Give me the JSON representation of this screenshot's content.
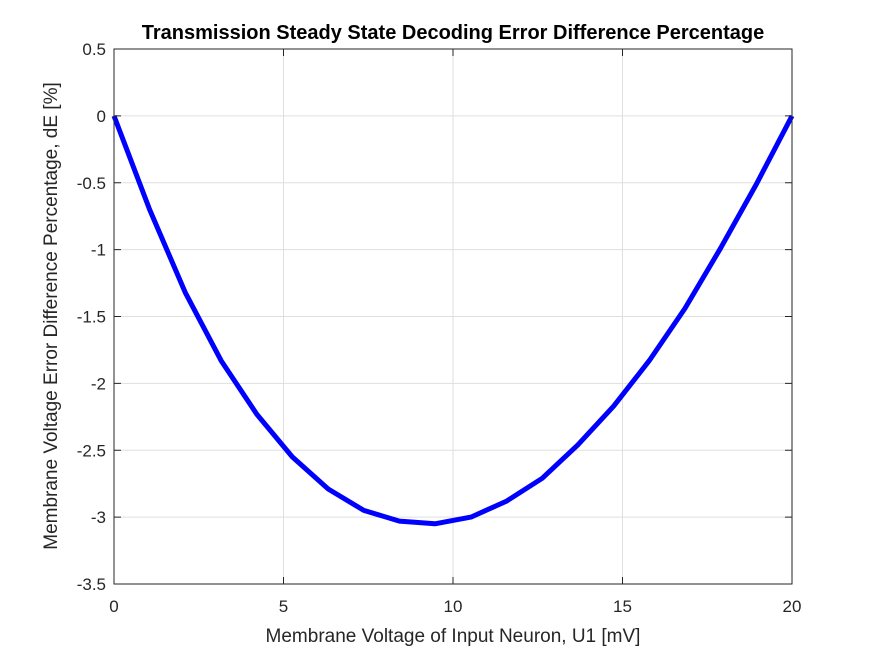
{
  "chart_data": {
    "type": "line",
    "title": "Transmission Steady State Decoding Error Difference Percentage",
    "xlabel": "Membrane Voltage of Input Neuron, U1 [mV]",
    "ylabel": "Membrane Voltage Error Difference Percentage, dE [%]",
    "xlim": [
      0,
      20
    ],
    "ylim": [
      -3.5,
      0.5
    ],
    "xticks": [
      0,
      5,
      10,
      15,
      20
    ],
    "yticks": [
      -3.5,
      -3,
      -2.5,
      -2,
      -1.5,
      -1,
      -0.5,
      0,
      0.5
    ],
    "xtick_labels": [
      "0",
      "5",
      "10",
      "15",
      "20"
    ],
    "ytick_labels": [
      "-3.5",
      "-3",
      "-2.5",
      "-2",
      "-1.5",
      "-1",
      "-0.5",
      "0",
      "0.5"
    ],
    "grid": true,
    "series": [
      {
        "color": "#0000ff",
        "x": [
          0,
          1.05,
          2.1,
          3.16,
          4.21,
          5.26,
          6.32,
          7.37,
          8.42,
          9.47,
          10.53,
          11.58,
          12.63,
          13.68,
          14.74,
          15.79,
          16.84,
          17.89,
          18.95,
          20
        ],
        "y": [
          0,
          -0.7,
          -1.32,
          -1.83,
          -2.23,
          -2.55,
          -2.79,
          -2.95,
          -3.03,
          -3.05,
          -3.0,
          -2.88,
          -2.71,
          -2.46,
          -2.17,
          -1.83,
          -1.44,
          -0.99,
          -0.51,
          0
        ]
      }
    ]
  }
}
